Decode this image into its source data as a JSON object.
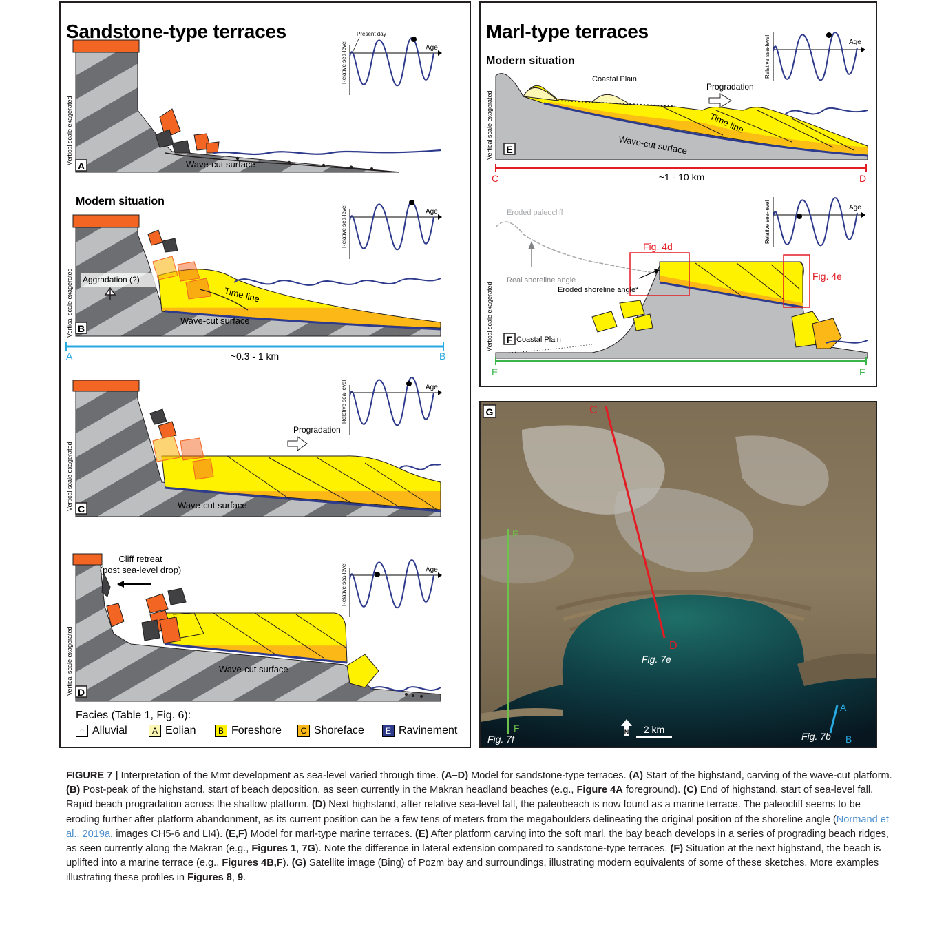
{
  "left_panel": {
    "title": "Sandstone-type terraces",
    "sub_a": "",
    "sub_b": "Modern situation",
    "panels": [
      {
        "letter": "A",
        "label": "Wave-cut surface"
      },
      {
        "letter": "B",
        "label": "Wave-cut surface",
        "aggradation": "Aggradation (?)",
        "timeline": "Time line"
      },
      {
        "letter": "C",
        "label": "Wave-cut surface",
        "progradation": "Progradation"
      },
      {
        "letter": "D",
        "label": "Wave-cut surface",
        "cliff_retreat_1": "Cliff retreat",
        "cliff_retreat_2": "(post sea-level drop)"
      }
    ],
    "vscale": "Vertical scale exagerated",
    "section": {
      "start": "A",
      "end": "B",
      "length": "~0.3 - 1 km"
    },
    "sea_curve": {
      "ylabel": "Relative sea-level",
      "xlabel": "Age",
      "present": "Present day"
    },
    "legend_title": "Facies (Table 1, Fig. 6):",
    "legend": [
      {
        "code": "",
        "label": "Alluvial",
        "color": "#ffffff"
      },
      {
        "code": "A",
        "label": "Eolian",
        "color": "#fdf7b6"
      },
      {
        "code": "B",
        "label": "Foreshore",
        "color": "#fff200"
      },
      {
        "code": "C",
        "label": "Shoreface",
        "color": "#fbb817"
      },
      {
        "code": "E",
        "label": "Ravinement",
        "color": "#2e3a8c"
      }
    ]
  },
  "right_panel": {
    "title": "Marl-type terraces",
    "sub_e": "Modern situation",
    "panel_e": {
      "letter": "E",
      "coastal_plain": "Coastal Plain",
      "progradation": "Progradation",
      "timeline": "Time line",
      "surface": "Wave-cut surface",
      "start": "C",
      "end": "D",
      "length": "~1 - 10 km"
    },
    "panel_f": {
      "letter": "F",
      "eroded_paleocliff": "Eroded paleocliff",
      "real_angle": "Real shoreline angle",
      "eroded_angle": "Eroded shoreline angle*",
      "fig4d": "Fig. 4d",
      "fig4e": "Fig. 4e",
      "coastal_plain": "Coastal Plain",
      "start": "E",
      "end": "F"
    },
    "vscale": "Vertical scale exagerated"
  },
  "map_panel": {
    "letter": "G",
    "labels": {
      "c": "C",
      "d": "D",
      "e": "E",
      "f": "F",
      "a": "A",
      "b": "B"
    },
    "fig7e": "Fig. 7e",
    "fig7f": "Fig. 7f",
    "fig7b": "Fig. 7b",
    "north": "N",
    "scale": "2 km"
  },
  "caption": {
    "fig_label": "FIGURE 7 |",
    "t1": " Interpretation of the Mmt development as sea-level varied through time. ",
    "b1": "(A–D)",
    "t2": " Model for sandstone-type terraces. ",
    "b2": "(A)",
    "t3": " Start of the highstand, carving of the wave-cut platform. ",
    "b3": "(B)",
    "t4": " Post-peak of the highstand, start of beach deposition, as seen currently in the Makran headland beaches (e.g., ",
    "b4": "Figure 4A",
    "t5": " foreground). ",
    "b5": "(C)",
    "t6": " End of highstand, start of sea-level fall. Rapid beach progradation across the shallow platform. ",
    "b6": "(D)",
    "t7": " Next highstand, after relative sea-level fall, the paleobeach is now found as a marine terrace. The paleocliff seems to be eroding further after platform abandonment, as its current position can be a few tens of meters from the megaboulders delineating the original position of the shoreline angle (",
    "cite": "Normand et al., 2019a",
    "t8": ", images CH5-6 and LI4). ",
    "b7": "(E,F)",
    "t9": " Model for marl-type marine terraces. ",
    "b8": "(E)",
    "t10": " After platform carving into the soft marl, the bay beach develops in a series of prograding beach ridges, as seen currently along the Makran (e.g., ",
    "b9": "Figures 1",
    "t11": ", ",
    "b10": "7G",
    "t12": "). Note the difference in lateral extension compared to sandstone-type terraces. ",
    "b11": "(F)",
    "t13": " Situation at the next highstand, the beach is uplifted into a marine terrace (e.g., ",
    "b12": "Figures 4B,F",
    "t14": "). ",
    "b13": "(G)",
    "t15": " Satellite image (Bing) of Pozm bay and surroundings, illustrating modern equivalents of some of these sketches. More examples illustrating these profiles in ",
    "b14": "Figures 8",
    "t16": ", ",
    "b15": "9",
    "t17": "."
  }
}
